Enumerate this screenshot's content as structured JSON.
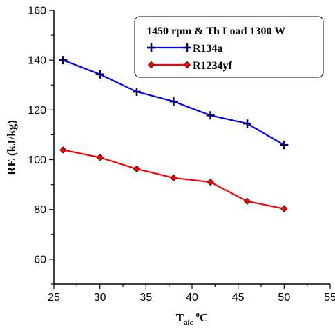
{
  "chart_data": {
    "type": "line",
    "legend_title": "1450 rpm & Th Load 1300 W",
    "xlabel": {
      "main": "T",
      "sub": "aic",
      "deg": "o",
      "unit": "C"
    },
    "ylabel": "RE (kJ/kg)",
    "xlim": [
      25,
      55
    ],
    "ylim": [
      50,
      160
    ],
    "x_ticks": [
      25,
      30,
      35,
      40,
      45,
      50,
      55
    ],
    "y_ticks": [
      60,
      80,
      100,
      120,
      140,
      160
    ],
    "grid": false,
    "legend_position": "top-right",
    "x": [
      26,
      30,
      34,
      38,
      42,
      46,
      50
    ],
    "series": [
      {
        "name": "R134a",
        "color": "#0000ff",
        "marker": "plus",
        "values": [
          140.0,
          134.3,
          127.3,
          123.4,
          117.8,
          114.5,
          105.9
        ]
      },
      {
        "name": "R1234yf",
        "color": "#ff0000",
        "marker": "diamond",
        "values": [
          103.9,
          100.9,
          96.3,
          92.7,
          91.0,
          83.3,
          80.3
        ]
      }
    ]
  }
}
